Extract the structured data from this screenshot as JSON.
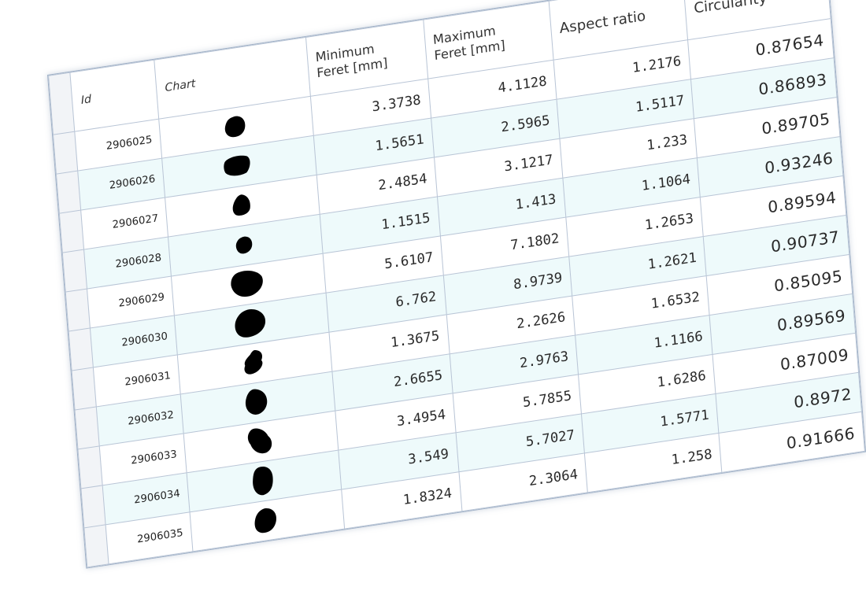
{
  "columns": {
    "id": "Id",
    "chart": "Chart",
    "min_feret_line1": "Minimum",
    "min_feret_line2": "Feret [mm]",
    "max_feret_line1": "Maximum",
    "max_feret_line2": "Feret [mm]",
    "aspect_ratio": "Aspect ratio",
    "circularity": "Circularity"
  },
  "rows": [
    {
      "id": "2906025",
      "shape": "particle-shape-icon",
      "min_feret": "3.3738",
      "max_feret": "4.1128",
      "aspect_ratio": "1.2176",
      "circularity": "0.87654"
    },
    {
      "id": "2906026",
      "shape": "particle-shape-icon",
      "min_feret": "1.5651",
      "max_feret": "2.5965",
      "aspect_ratio": "1.5117",
      "circularity": "0.86893"
    },
    {
      "id": "2906027",
      "shape": "particle-shape-icon",
      "min_feret": "2.4854",
      "max_feret": "3.1217",
      "aspect_ratio": "1.233",
      "circularity": "0.89705"
    },
    {
      "id": "2906028",
      "shape": "particle-shape-icon",
      "min_feret": "1.1515",
      "max_feret": "1.413",
      "aspect_ratio": "1.1064",
      "circularity": "0.93246"
    },
    {
      "id": "2906029",
      "shape": "particle-shape-icon",
      "min_feret": "5.6107",
      "max_feret": "7.1802",
      "aspect_ratio": "1.2653",
      "circularity": "0.89594"
    },
    {
      "id": "2906030",
      "shape": "particle-shape-icon",
      "min_feret": "6.762",
      "max_feret": "8.9739",
      "aspect_ratio": "1.2621",
      "circularity": "0.90737"
    },
    {
      "id": "2906031",
      "shape": "particle-shape-icon",
      "min_feret": "1.3675",
      "max_feret": "2.2626",
      "aspect_ratio": "1.6532",
      "circularity": "0.85095"
    },
    {
      "id": "2906032",
      "shape": "particle-shape-icon",
      "min_feret": "2.6655",
      "max_feret": "2.9763",
      "aspect_ratio": "1.1166",
      "circularity": "0.89569"
    },
    {
      "id": "2906033",
      "shape": "particle-shape-icon",
      "min_feret": "3.4954",
      "max_feret": "5.7855",
      "aspect_ratio": "1.6286",
      "circularity": "0.87009"
    },
    {
      "id": "2906034",
      "shape": "particle-shape-icon",
      "min_feret": "3.549",
      "max_feret": "5.7027",
      "aspect_ratio": "1.5771",
      "circularity": "0.8972"
    },
    {
      "id": "2906035",
      "shape": "particle-shape-icon",
      "min_feret": "1.8324",
      "max_feret": "2.3064",
      "aspect_ratio": "1.258",
      "circularity": "0.91666"
    }
  ],
  "colors": {
    "alt_row": "#eefafb",
    "grid_line": "#b9c5d6",
    "particle": "#000000"
  }
}
